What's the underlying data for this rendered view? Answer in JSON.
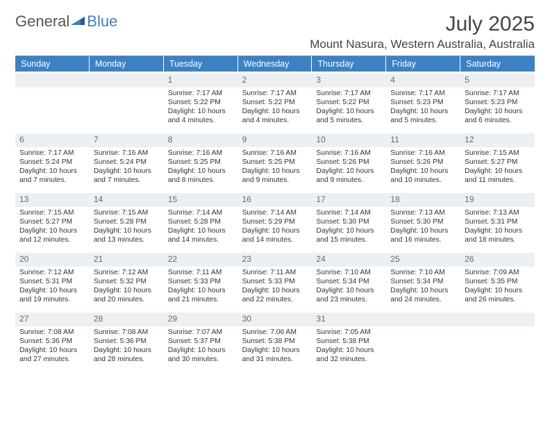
{
  "brand": {
    "part1": "General",
    "part2": "Blue"
  },
  "title": "July 2025",
  "location": "Mount Nasura, Western Australia, Australia",
  "colors": {
    "header_bg": "#3b82c4",
    "header_text": "#ffffff",
    "daynum_bg": "#edf0f2",
    "daynum_text": "#5e6b76",
    "body_text": "#333333",
    "rule": "#888888"
  },
  "dow": [
    "Sunday",
    "Monday",
    "Tuesday",
    "Wednesday",
    "Thursday",
    "Friday",
    "Saturday"
  ],
  "weeks": [
    [
      {
        "blank": true
      },
      {
        "blank": true
      },
      {
        "n": 1,
        "sunrise": "7:17 AM",
        "sunset": "5:22 PM",
        "dl1": "Daylight: 10 hours",
        "dl2": "and 4 minutes."
      },
      {
        "n": 2,
        "sunrise": "7:17 AM",
        "sunset": "5:22 PM",
        "dl1": "Daylight: 10 hours",
        "dl2": "and 4 minutes."
      },
      {
        "n": 3,
        "sunrise": "7:17 AM",
        "sunset": "5:22 PM",
        "dl1": "Daylight: 10 hours",
        "dl2": "and 5 minutes."
      },
      {
        "n": 4,
        "sunrise": "7:17 AM",
        "sunset": "5:23 PM",
        "dl1": "Daylight: 10 hours",
        "dl2": "and 5 minutes."
      },
      {
        "n": 5,
        "sunrise": "7:17 AM",
        "sunset": "5:23 PM",
        "dl1": "Daylight: 10 hours",
        "dl2": "and 6 minutes."
      }
    ],
    [
      {
        "n": 6,
        "sunrise": "7:17 AM",
        "sunset": "5:24 PM",
        "dl1": "Daylight: 10 hours",
        "dl2": "and 7 minutes."
      },
      {
        "n": 7,
        "sunrise": "7:16 AM",
        "sunset": "5:24 PM",
        "dl1": "Daylight: 10 hours",
        "dl2": "and 7 minutes."
      },
      {
        "n": 8,
        "sunrise": "7:16 AM",
        "sunset": "5:25 PM",
        "dl1": "Daylight: 10 hours",
        "dl2": "and 8 minutes."
      },
      {
        "n": 9,
        "sunrise": "7:16 AM",
        "sunset": "5:25 PM",
        "dl1": "Daylight: 10 hours",
        "dl2": "and 9 minutes."
      },
      {
        "n": 10,
        "sunrise": "7:16 AM",
        "sunset": "5:26 PM",
        "dl1": "Daylight: 10 hours",
        "dl2": "and 9 minutes."
      },
      {
        "n": 11,
        "sunrise": "7:16 AM",
        "sunset": "5:26 PM",
        "dl1": "Daylight: 10 hours",
        "dl2": "and 10 minutes."
      },
      {
        "n": 12,
        "sunrise": "7:15 AM",
        "sunset": "5:27 PM",
        "dl1": "Daylight: 10 hours",
        "dl2": "and 11 minutes."
      }
    ],
    [
      {
        "n": 13,
        "sunrise": "7:15 AM",
        "sunset": "5:27 PM",
        "dl1": "Daylight: 10 hours",
        "dl2": "and 12 minutes."
      },
      {
        "n": 14,
        "sunrise": "7:15 AM",
        "sunset": "5:28 PM",
        "dl1": "Daylight: 10 hours",
        "dl2": "and 13 minutes."
      },
      {
        "n": 15,
        "sunrise": "7:14 AM",
        "sunset": "5:28 PM",
        "dl1": "Daylight: 10 hours",
        "dl2": "and 14 minutes."
      },
      {
        "n": 16,
        "sunrise": "7:14 AM",
        "sunset": "5:29 PM",
        "dl1": "Daylight: 10 hours",
        "dl2": "and 14 minutes."
      },
      {
        "n": 17,
        "sunrise": "7:14 AM",
        "sunset": "5:30 PM",
        "dl1": "Daylight: 10 hours",
        "dl2": "and 15 minutes."
      },
      {
        "n": 18,
        "sunrise": "7:13 AM",
        "sunset": "5:30 PM",
        "dl1": "Daylight: 10 hours",
        "dl2": "and 16 minutes."
      },
      {
        "n": 19,
        "sunrise": "7:13 AM",
        "sunset": "5:31 PM",
        "dl1": "Daylight: 10 hours",
        "dl2": "and 18 minutes."
      }
    ],
    [
      {
        "n": 20,
        "sunrise": "7:12 AM",
        "sunset": "5:31 PM",
        "dl1": "Daylight: 10 hours",
        "dl2": "and 19 minutes."
      },
      {
        "n": 21,
        "sunrise": "7:12 AM",
        "sunset": "5:32 PM",
        "dl1": "Daylight: 10 hours",
        "dl2": "and 20 minutes."
      },
      {
        "n": 22,
        "sunrise": "7:11 AM",
        "sunset": "5:33 PM",
        "dl1": "Daylight: 10 hours",
        "dl2": "and 21 minutes."
      },
      {
        "n": 23,
        "sunrise": "7:11 AM",
        "sunset": "5:33 PM",
        "dl1": "Daylight: 10 hours",
        "dl2": "and 22 minutes."
      },
      {
        "n": 24,
        "sunrise": "7:10 AM",
        "sunset": "5:34 PM",
        "dl1": "Daylight: 10 hours",
        "dl2": "and 23 minutes."
      },
      {
        "n": 25,
        "sunrise": "7:10 AM",
        "sunset": "5:34 PM",
        "dl1": "Daylight: 10 hours",
        "dl2": "and 24 minutes."
      },
      {
        "n": 26,
        "sunrise": "7:09 AM",
        "sunset": "5:35 PM",
        "dl1": "Daylight: 10 hours",
        "dl2": "and 26 minutes."
      }
    ],
    [
      {
        "n": 27,
        "sunrise": "7:08 AM",
        "sunset": "5:36 PM",
        "dl1": "Daylight: 10 hours",
        "dl2": "and 27 minutes."
      },
      {
        "n": 28,
        "sunrise": "7:08 AM",
        "sunset": "5:36 PM",
        "dl1": "Daylight: 10 hours",
        "dl2": "and 28 minutes."
      },
      {
        "n": 29,
        "sunrise": "7:07 AM",
        "sunset": "5:37 PM",
        "dl1": "Daylight: 10 hours",
        "dl2": "and 30 minutes."
      },
      {
        "n": 30,
        "sunrise": "7:06 AM",
        "sunset": "5:38 PM",
        "dl1": "Daylight: 10 hours",
        "dl2": "and 31 minutes."
      },
      {
        "n": 31,
        "sunrise": "7:05 AM",
        "sunset": "5:38 PM",
        "dl1": "Daylight: 10 hours",
        "dl2": "and 32 minutes."
      },
      {
        "blank": true
      },
      {
        "blank": true
      }
    ]
  ]
}
